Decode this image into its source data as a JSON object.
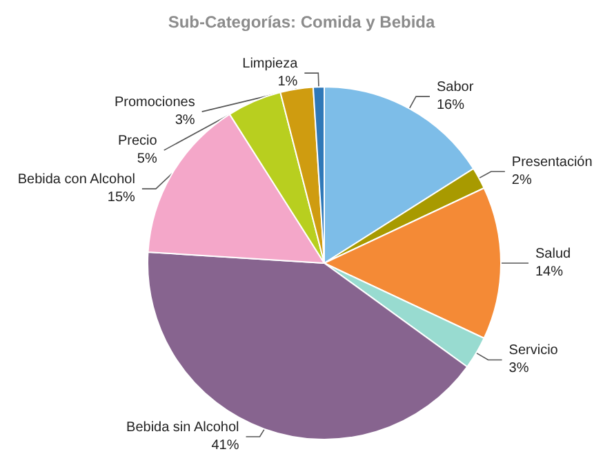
{
  "chart_data": {
    "type": "pie",
    "title": "Sub-Categorías: Comida y Bebida",
    "categories": [
      "Sabor",
      "Presentación",
      "Salud",
      "Servicio",
      "Bebida sin Alcohol",
      "Bebida con Alcohol",
      "Precio",
      "Promociones",
      "Limpieza"
    ],
    "values": [
      16,
      2,
      14,
      3,
      41,
      15,
      5,
      3,
      1
    ],
    "value_labels": [
      "16%",
      "2%",
      "14%",
      "3%",
      "41%",
      "15%",
      "5%",
      "3%",
      "1%"
    ],
    "colors": [
      "#7dbde8",
      "#a89a00",
      "#f48a36",
      "#98dbd0",
      "#87648f",
      "#f4a7c9",
      "#b8cf1f",
      "#cf9c10",
      "#2f78b8"
    ],
    "legend": false
  }
}
